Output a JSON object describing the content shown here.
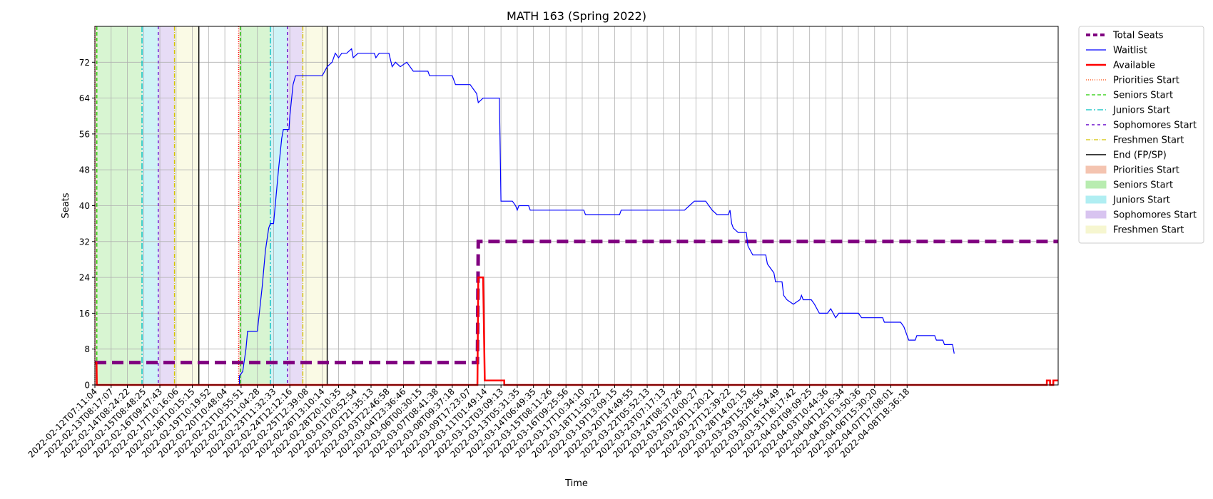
{
  "chart_data": {
    "type": "line",
    "title": "MATH 163 (Spring 2022)",
    "xlabel": "Time",
    "ylabel": "Seats",
    "ylim": [
      0,
      80
    ],
    "yticks": [
      0,
      8,
      16,
      24,
      32,
      40,
      48,
      56,
      64,
      72
    ],
    "grid": true,
    "legend_position": "outside-right",
    "x_range": [
      0,
      59.3
    ],
    "xtick_labels": [
      "2022-02-12T07:11:04",
      "2022-02-13T08:17:07",
      "2022-02-14T08:24:22",
      "2022-02-15T08:48:25",
      "2022-02-16T09:47:43",
      "2022-02-17T10:16:06",
      "2022-02-18T10:15:15",
      "2022-02-19T10:19:52",
      "2022-02-20T10:48:04",
      "2022-02-21T10:55:51",
      "2022-02-22T11:04:28",
      "2022-02-23T11:32:33",
      "2022-02-24T12:12:16",
      "2022-02-25T12:39:08",
      "2022-02-26T13:10:14",
      "2022-02-28T20:10:35",
      "2022-03-01T20:52:54",
      "2022-03-02T21:35:13",
      "2022-03-03T22:46:58",
      "2022-03-04T23:36:46",
      "2022-03-06T00:30:15",
      "2022-03-07T08:41:38",
      "2022-03-08T09:37:18",
      "2022-03-09T17:23:07",
      "2022-03-11T01:49:14",
      "2022-03-12T03:09:13",
      "2022-03-13T05:31:35",
      "2022-03-14T06:49:35",
      "2022-03-15T08:11:26",
      "2022-03-16T09:25:56",
      "2022-03-17T10:34:10",
      "2022-03-18T11:50:22",
      "2022-03-19T13:09:15",
      "2022-03-20T14:49:55",
      "2022-03-22T05:52:13",
      "2022-03-23T07:17:13",
      "2022-03-24T08:37:26",
      "2022-03-25T10:00:27",
      "2022-03-26T11:20:21",
      "2022-03-27T12:39:22",
      "2022-03-28T14:02:15",
      "2022-03-29T15:28:56",
      "2022-03-30T16:54:49",
      "2022-03-31T18:17:42",
      "2022-04-02T09:09:25",
      "2022-04-03T10:44:36",
      "2022-04-04T12:16:34",
      "2022-04-05T13:50:36",
      "2022-04-06T15:30:20",
      "2022-04-07T17:08:01",
      "2022-04-08T18:36:18"
    ],
    "shaded_periods": [
      {
        "name": "Priorities Start",
        "color": "#f4a582",
        "start": 0.0,
        "end": 0.12
      },
      {
        "name": "Seniors Start",
        "color": "#7fdd6a",
        "start": 0.12,
        "end": 2.9
      },
      {
        "name": "Juniors Start",
        "color": "#5fd8e2",
        "start": 2.9,
        "end": 3.9
      },
      {
        "name": "Sophomores Start",
        "color": "#b08be0",
        "start": 3.9,
        "end": 4.9
      },
      {
        "name": "Freshmen Start",
        "color": "#f0f0a8",
        "start": 4.9,
        "end": 6.4
      },
      {
        "name": "Priorities Start",
        "color": "#f4a582",
        "start": 8.85,
        "end": 8.95
      },
      {
        "name": "Seniors Start",
        "color": "#7fdd6a",
        "start": 8.95,
        "end": 10.8
      },
      {
        "name": "Juniors Start",
        "color": "#5fd8e2",
        "start": 10.8,
        "end": 11.85
      },
      {
        "name": "Sophomores Start",
        "color": "#b08be0",
        "start": 11.85,
        "end": 12.8
      },
      {
        "name": "Freshmen Start",
        "color": "#f0f0a8",
        "start": 12.8,
        "end": 14.3
      }
    ],
    "vertical_lines": [
      {
        "name": "Priorities Start",
        "x": [
          0.0,
          8.85
        ],
        "color": "#ff0000",
        "dash": "1,2"
      },
      {
        "name": "Seniors Start",
        "x": [
          0.12,
          8.95
        ],
        "color": "#22cc00",
        "dash": "5,3"
      },
      {
        "name": "Juniors Start",
        "x": [
          2.9,
          10.8
        ],
        "color": "#00bfbf",
        "dash": "8,3,2,3"
      },
      {
        "name": "Sophomores Start",
        "x": [
          3.9,
          11.85
        ],
        "color": "#6a0dcc",
        "dash": "4,4"
      },
      {
        "name": "Freshmen Start",
        "x": [
          4.9,
          12.8
        ],
        "color": "#d4c400",
        "dash": "6,2,1,2"
      },
      {
        "name": "End (FP/SP)",
        "x": [
          6.4,
          14.3
        ],
        "color": "#000000",
        "dash": ""
      }
    ],
    "series": [
      {
        "name": "Total Seats",
        "color": "#800080",
        "style": "dashed-thick",
        "points": [
          [
            0,
            5
          ],
          [
            23.55,
            5
          ],
          [
            23.6,
            32
          ],
          [
            59.3,
            32
          ]
        ]
      },
      {
        "name": "Waitlist",
        "color": "#0000ff",
        "style": "solid-thin",
        "points": [
          [
            0,
            0
          ],
          [
            8.9,
            0
          ],
          [
            8.9,
            2
          ],
          [
            9.1,
            3
          ],
          [
            9.3,
            8
          ],
          [
            9.4,
            12
          ],
          [
            10.0,
            12
          ],
          [
            10.3,
            22
          ],
          [
            10.5,
            30
          ],
          [
            10.7,
            35
          ],
          [
            10.8,
            36
          ],
          [
            11.0,
            36
          ],
          [
            11.3,
            48
          ],
          [
            11.5,
            55
          ],
          [
            11.6,
            57
          ],
          [
            11.95,
            57
          ],
          [
            12.0,
            60
          ],
          [
            12.2,
            67
          ],
          [
            12.35,
            69
          ],
          [
            12.9,
            69
          ],
          [
            14.0,
            69
          ],
          [
            14.3,
            71
          ],
          [
            14.6,
            72
          ],
          [
            14.8,
            74
          ],
          [
            15.0,
            73
          ],
          [
            15.2,
            74
          ],
          [
            15.5,
            74
          ],
          [
            15.8,
            75
          ],
          [
            15.9,
            73
          ],
          [
            16.2,
            74
          ],
          [
            17.2,
            74
          ],
          [
            17.3,
            73
          ],
          [
            17.5,
            74
          ],
          [
            18.1,
            74
          ],
          [
            18.3,
            71
          ],
          [
            18.5,
            72
          ],
          [
            18.8,
            71
          ],
          [
            19.2,
            72
          ],
          [
            19.6,
            70
          ],
          [
            20.5,
            70
          ],
          [
            20.6,
            69
          ],
          [
            22.0,
            69
          ],
          [
            22.1,
            68
          ],
          [
            22.2,
            67
          ],
          [
            23.1,
            67
          ],
          [
            23.3,
            66
          ],
          [
            23.5,
            65
          ],
          [
            23.6,
            63
          ],
          [
            23.9,
            64
          ],
          [
            24.9,
            64
          ],
          [
            25.0,
            41
          ],
          [
            25.7,
            41
          ],
          [
            25.9,
            40
          ],
          [
            26.0,
            39
          ],
          [
            26.1,
            40
          ],
          [
            26.7,
            40
          ],
          [
            26.8,
            39
          ],
          [
            30.1,
            39
          ],
          [
            30.2,
            38
          ],
          [
            32.3,
            38
          ],
          [
            32.4,
            39
          ],
          [
            36.3,
            39
          ],
          [
            36.6,
            40
          ],
          [
            36.9,
            41
          ],
          [
            37.6,
            41
          ],
          [
            37.8,
            40
          ],
          [
            38.0,
            39
          ],
          [
            38.3,
            38
          ],
          [
            39.0,
            38
          ],
          [
            39.1,
            39
          ],
          [
            39.2,
            36
          ],
          [
            39.3,
            35
          ],
          [
            39.6,
            34
          ],
          [
            40.1,
            34
          ],
          [
            40.2,
            31
          ],
          [
            40.5,
            29
          ],
          [
            41.3,
            29
          ],
          [
            41.4,
            27
          ],
          [
            41.6,
            26
          ],
          [
            41.8,
            25
          ],
          [
            41.9,
            23
          ],
          [
            42.3,
            23
          ],
          [
            42.4,
            20
          ],
          [
            42.6,
            19
          ],
          [
            43.0,
            18
          ],
          [
            43.4,
            19
          ],
          [
            43.5,
            20
          ],
          [
            43.6,
            19
          ],
          [
            44.1,
            19
          ],
          [
            44.3,
            18
          ],
          [
            44.6,
            16
          ],
          [
            45.1,
            16
          ],
          [
            45.3,
            17
          ],
          [
            45.6,
            15
          ],
          [
            45.8,
            16
          ],
          [
            47.0,
            16
          ],
          [
            47.2,
            15
          ],
          [
            48.5,
            15
          ],
          [
            48.6,
            14
          ],
          [
            49.6,
            14
          ],
          [
            49.8,
            13
          ],
          [
            49.9,
            12
          ],
          [
            50.1,
            10
          ],
          [
            50.5,
            10
          ],
          [
            50.6,
            11
          ],
          [
            51.7,
            11
          ],
          [
            51.8,
            10
          ],
          [
            52.2,
            10
          ],
          [
            52.3,
            9
          ],
          [
            52.8,
            9
          ],
          [
            52.9,
            7
          ]
        ]
      },
      {
        "name": "Available",
        "color": "#ff0000",
        "style": "solid-thick",
        "points": [
          [
            0,
            5
          ],
          [
            0.1,
            5
          ],
          [
            0.12,
            0
          ],
          [
            23.55,
            0
          ],
          [
            23.6,
            24
          ],
          [
            23.9,
            24
          ],
          [
            24.0,
            1
          ],
          [
            24.2,
            1
          ],
          [
            25.2,
            1
          ],
          [
            25.2,
            0
          ],
          [
            58.6,
            0
          ],
          [
            58.6,
            1
          ],
          [
            58.8,
            1
          ],
          [
            58.8,
            0
          ],
          [
            59.0,
            0
          ],
          [
            59.0,
            1
          ],
          [
            59.3,
            1
          ]
        ]
      }
    ],
    "legend": [
      {
        "label": "Total Seats",
        "kind": "line",
        "color": "#800080",
        "dash": "6,4",
        "width": 4
      },
      {
        "label": "Waitlist",
        "kind": "line",
        "color": "#0000ff",
        "dash": "",
        "width": 1.2
      },
      {
        "label": "Available",
        "kind": "line",
        "color": "#ff0000",
        "dash": "",
        "width": 2.5
      },
      {
        "label": "Priorities Start",
        "kind": "line",
        "color": "#ff4500",
        "dash": "1,2",
        "width": 1.3
      },
      {
        "label": "Seniors Start",
        "kind": "line",
        "color": "#22cc00",
        "dash": "5,3",
        "width": 1.3
      },
      {
        "label": "Juniors Start",
        "kind": "line",
        "color": "#00bfbf",
        "dash": "8,3,2,3",
        "width": 1.3
      },
      {
        "label": "Sophomores Start",
        "kind": "line",
        "color": "#6a0dcc",
        "dash": "4,4",
        "width": 1.5
      },
      {
        "label": "Freshmen Start",
        "kind": "line",
        "color": "#d4c400",
        "dash": "6,2,1,2",
        "width": 1.3
      },
      {
        "label": "End (FP/SP)",
        "kind": "line",
        "color": "#000000",
        "dash": "",
        "width": 1.5
      },
      {
        "label": "Priorities Start",
        "kind": "patch",
        "color": "#f4c4b0"
      },
      {
        "label": "Seniors Start",
        "kind": "patch",
        "color": "#b8ecb0"
      },
      {
        "label": "Juniors Start",
        "kind": "patch",
        "color": "#b0eef2"
      },
      {
        "label": "Sophomores Start",
        "kind": "patch",
        "color": "#d8c4f0"
      },
      {
        "label": "Freshmen Start",
        "kind": "patch",
        "color": "#f6f6d0"
      }
    ]
  }
}
